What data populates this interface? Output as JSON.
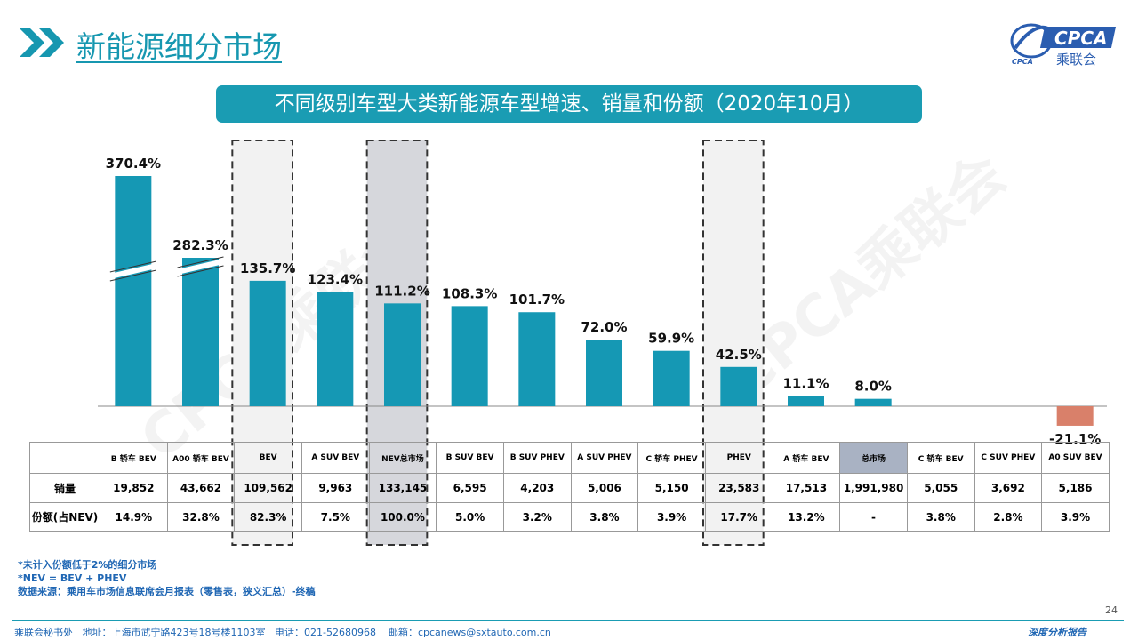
{
  "header": {
    "title": "新能源细分市场",
    "logo_text": "CPCA",
    "logo_subtext": "乘联会",
    "logo_small": "CPCA"
  },
  "banner": "不同级别车型大类新能源车型增速、销量和份额（2020年10月）",
  "watermark": "CPCA乘联会",
  "chart_data": {
    "type": "bar",
    "title": "不同级别车型大类新能源车型增速、销量和份额（2020年10月）",
    "categories": [
      "B 轿车 BEV",
      "A00 轿车 BEV",
      "BEV",
      "A SUV BEV",
      "NEV总市场",
      "B SUV BEV",
      "B SUV PHEV",
      "A SUV PHEV",
      "C 轿车 PHEV",
      "PHEV",
      "A 轿车 BEV",
      "总市场",
      "C 轿车 BEV",
      "C SUV PHEV",
      "A0 SUV BEV"
    ],
    "series": [
      {
        "values": [
          370.4,
          282.3,
          135.7,
          123.4,
          111.2,
          108.3,
          101.7,
          72.0,
          59.9,
          42.5,
          11.1,
          8.0,
          null,
          null,
          -21.1
        ],
        "labels": [
          "370.4%",
          "282.3%",
          "135.7%",
          "123.4%",
          "111.2%",
          "108.3%",
          "101.7%",
          "72.0%",
          "59.9%",
          "42.5%",
          "11.1%",
          "8.0%",
          "",
          "",
          "-21.1%"
        ]
      }
    ],
    "bar_color": "#1598b4",
    "negative_color": "#d9806a",
    "broken_axis_bars": [
      "B 轿车 BEV",
      "A00 轿车 BEV"
    ],
    "highlighted": [
      "BEV",
      "NEV总市场",
      "PHEV"
    ]
  },
  "table": {
    "row_labels": [
      "销量",
      "份额(占NEV)"
    ],
    "sales": [
      "19,852",
      "43,662",
      "109,562",
      "9,963",
      "133,145",
      "6,595",
      "4,203",
      "5,006",
      "5,150",
      "23,583",
      "17,513",
      "1,991,980",
      "5,055",
      "3,692",
      "5,186"
    ],
    "share": [
      "14.9%",
      "32.8%",
      "82.3%",
      "7.5%",
      "100.0%",
      "5.0%",
      "3.2%",
      "3.8%",
      "3.9%",
      "17.7%",
      "13.2%",
      "-",
      "3.8%",
      "2.8%",
      "3.9%"
    ]
  },
  "notes": [
    "*未计入份额低于2%的细分市场",
    "*NEV = BEV + PHEV",
    "数据来源：乘用车市场信息联席会月报表（零售表，狭义汇总）-终稿"
  ],
  "footer": {
    "org": "乘联会秘书处",
    "address": "地址：上海市武宁路423号18号楼1103室",
    "phone": "电话：021-52680968",
    "email": "邮箱：cpcanews@sxtauto.com.cn",
    "right": "深度分析报告",
    "page": "24"
  }
}
